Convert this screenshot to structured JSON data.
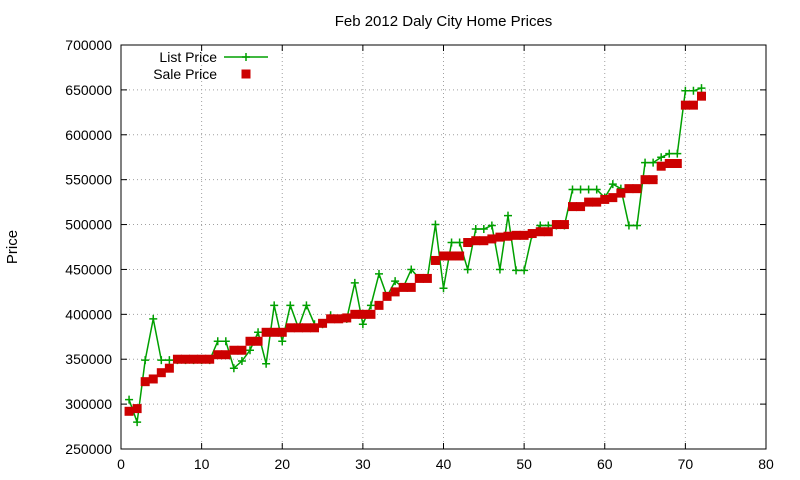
{
  "chart_data": {
    "type": "line",
    "title": "Feb 2012 Daly City Home Prices",
    "xlabel": "",
    "ylabel": "Price",
    "xlim": [
      0,
      80
    ],
    "ylim": [
      250000,
      700000
    ],
    "x_ticks": [
      0,
      10,
      20,
      30,
      40,
      50,
      60,
      70,
      80
    ],
    "y_ticks": [
      250000,
      300000,
      350000,
      400000,
      450000,
      500000,
      550000,
      600000,
      650000,
      700000
    ],
    "grid": true,
    "legend_position": "top-left",
    "series": [
      {
        "name": "List Price",
        "color": "#00a000",
        "marker": "plus",
        "line": true,
        "x": [
          1,
          2,
          3,
          4,
          5,
          6,
          7,
          8,
          9,
          10,
          11,
          12,
          13,
          14,
          15,
          16,
          17,
          18,
          19,
          20,
          21,
          22,
          23,
          24,
          25,
          26,
          27,
          28,
          29,
          30,
          31,
          32,
          33,
          34,
          35,
          36,
          37,
          38,
          39,
          40,
          41,
          42,
          43,
          44,
          45,
          46,
          47,
          48,
          49,
          50,
          51,
          52,
          53,
          54,
          55,
          56,
          57,
          58,
          59,
          60,
          61,
          62,
          63,
          64,
          65,
          66,
          67,
          68,
          69,
          70,
          71,
          72
        ],
        "y": [
          305000,
          280000,
          349000,
          395000,
          349000,
          349000,
          349000,
          349000,
          349000,
          349000,
          349000,
          370000,
          370000,
          340000,
          348000,
          360000,
          380000,
          345000,
          410000,
          370000,
          410000,
          385000,
          410000,
          389000,
          389000,
          399000,
          395000,
          395000,
          435000,
          389000,
          410000,
          445000,
          420000,
          437000,
          430000,
          450000,
          440000,
          440000,
          500000,
          429000,
          480000,
          480000,
          450000,
          495000,
          495000,
          499000,
          450000,
          510000,
          449000,
          449000,
          489000,
          499000,
          499000,
          499000,
          499000,
          539000,
          539000,
          539000,
          539000,
          530000,
          545000,
          540000,
          499000,
          499000,
          569000,
          569000,
          575000,
          579000,
          579000,
          649000,
          649000,
          652000
        ]
      },
      {
        "name": "Sale Price",
        "color": "#cc0000",
        "marker": "square",
        "line": false,
        "x": [
          1,
          2,
          3,
          4,
          5,
          6,
          7,
          8,
          9,
          10,
          11,
          12,
          13,
          14,
          15,
          16,
          17,
          18,
          19,
          20,
          21,
          22,
          23,
          24,
          25,
          26,
          27,
          28,
          29,
          30,
          31,
          32,
          33,
          34,
          35,
          36,
          37,
          38,
          39,
          40,
          41,
          42,
          43,
          44,
          45,
          46,
          47,
          48,
          49,
          50,
          51,
          52,
          53,
          54,
          55,
          56,
          57,
          58,
          59,
          60,
          61,
          62,
          63,
          64,
          65,
          66,
          67,
          68,
          69,
          70,
          71,
          72
        ],
        "y": [
          292000,
          295000,
          325000,
          328000,
          335000,
          340000,
          350000,
          350000,
          350000,
          350000,
          350000,
          355000,
          355000,
          360000,
          360000,
          370000,
          370000,
          380000,
          380000,
          380000,
          385000,
          385000,
          385000,
          385000,
          390000,
          395000,
          395000,
          396000,
          400000,
          400000,
          400000,
          410000,
          420000,
          425000,
          430000,
          430000,
          440000,
          440000,
          460000,
          465000,
          465000,
          465000,
          480000,
          482000,
          482000,
          484000,
          486000,
          487000,
          488000,
          488000,
          490000,
          492000,
          492000,
          500000,
          500000,
          520000,
          520000,
          525000,
          525000,
          528000,
          530000,
          535000,
          540000,
          540000,
          550000,
          550000,
          565000,
          568000,
          568000,
          633000,
          633000,
          643000
        ]
      }
    ]
  }
}
